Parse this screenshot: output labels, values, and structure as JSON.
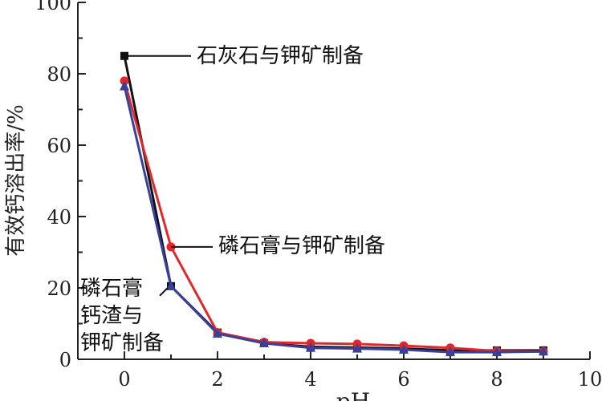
{
  "chart_data": {
    "type": "line",
    "xlabel": "pH",
    "ylabel": "有效钙溶出率/%",
    "xlim": [
      -1,
      10
    ],
    "ylim": [
      0,
      100
    ],
    "xticks": [
      0,
      2,
      4,
      6,
      8,
      10
    ],
    "yticks": [
      0,
      20,
      40,
      60,
      80,
      100
    ],
    "grid": false,
    "x": [
      0,
      1,
      2,
      3,
      4,
      5,
      6,
      7,
      8,
      9
    ],
    "series": [
      {
        "name": "石灰石与钾矿制备",
        "color": "#111111",
        "marker": "square",
        "values": [
          85,
          20.5,
          7.5,
          4.5,
          3.5,
          3.3,
          3.0,
          2.5,
          2.5,
          2.5
        ]
      },
      {
        "name": "磷石膏与钾矿制备",
        "color": "#e0282a",
        "marker": "circle",
        "values": [
          78,
          31.5,
          7.5,
          4.8,
          4.5,
          4.3,
          3.8,
          3.2,
          2.3,
          2.2
        ]
      },
      {
        "name": "磷石膏钙渣与钾矿制备",
        "color": "#3a3f9a",
        "marker": "triangle",
        "values": [
          76.5,
          20.5,
          7.2,
          4.5,
          3.2,
          3.0,
          2.7,
          2.0,
          2.0,
          2.2
        ]
      }
    ],
    "annotations": [
      {
        "lines": [
          "石灰石与钾矿制备"
        ],
        "series": 0,
        "point_x": 0
      },
      {
        "lines": [
          "磷石膏与钾矿制备"
        ],
        "series": 1,
        "point_x": 1
      },
      {
        "lines": [
          "磷石膏",
          "钙渣与",
          "钾矿制备"
        ],
        "series": 2,
        "point_x": 1
      }
    ]
  }
}
